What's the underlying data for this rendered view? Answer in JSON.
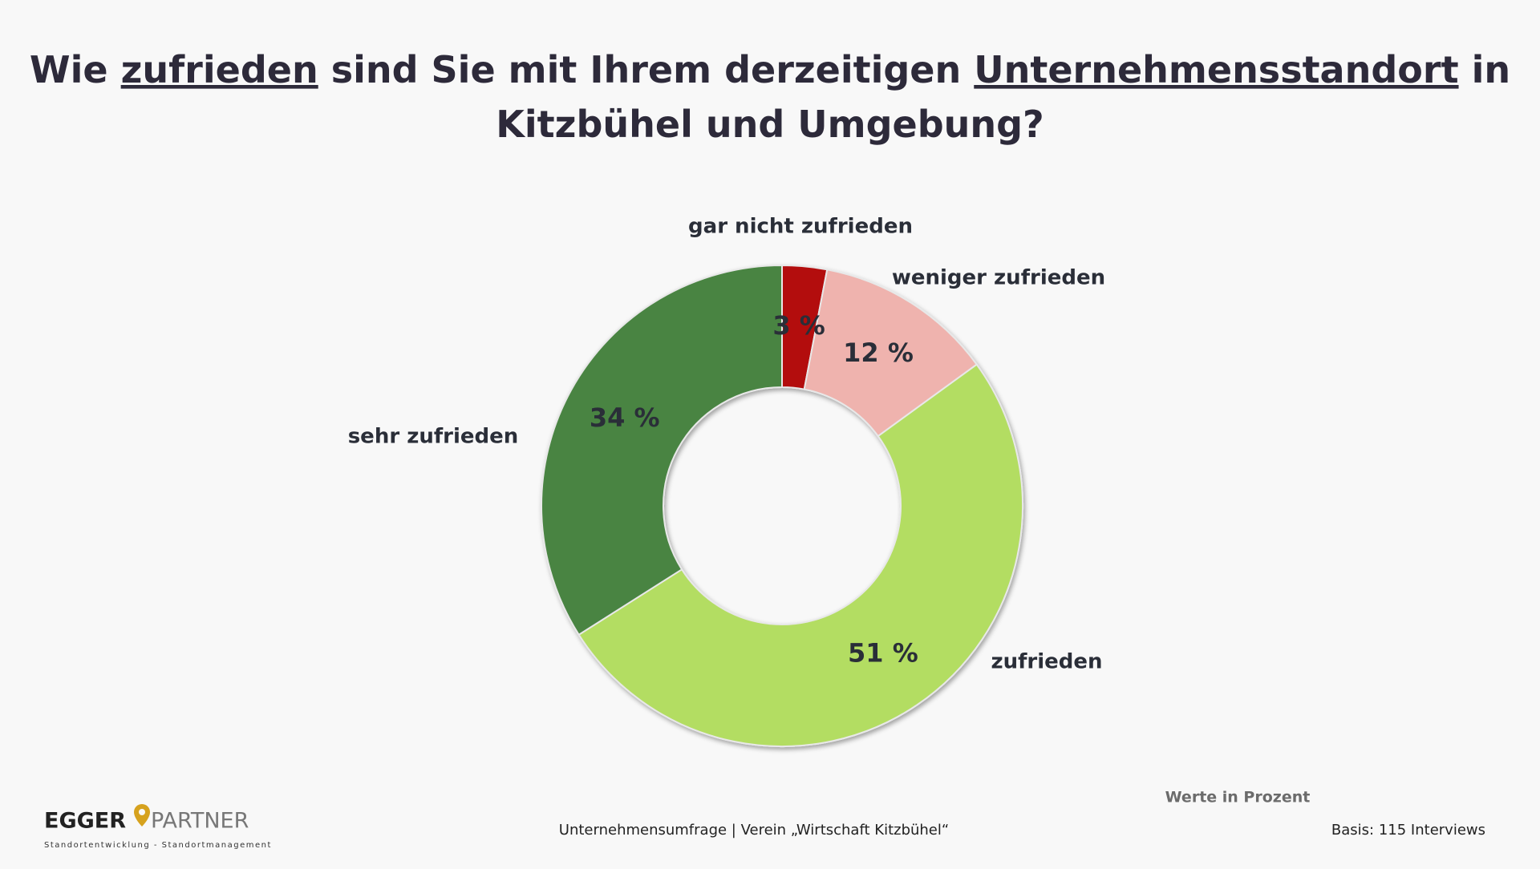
{
  "chart_data": {
    "type": "donut",
    "title": [
      {
        "text": "Wie "
      },
      {
        "text": "zufrieden",
        "underline": true
      },
      {
        "text": " sind Sie mit Ihrem derzeitigen "
      },
      {
        "text": "Unternehmensstandort",
        "underline": true
      },
      {
        "text": " in"
      },
      {
        "text": "Kitzbühel und Umgebung?",
        "newline": true
      }
    ],
    "categories": [
      "gar nicht zufrieden",
      "weniger zufrieden",
      "zufrieden",
      "sehr zufrieden"
    ],
    "values": [
      3,
      12,
      51,
      34
    ],
    "value_labels": [
      "3 %",
      "12 %",
      "51 %",
      "34 %"
    ],
    "colors": [
      "#b30f10",
      "#efb3ae",
      "#b3dd62",
      "#4a8442"
    ],
    "note": "Werte in Prozent"
  },
  "footer": {
    "source": "Unternehmensumfrage | Verein „Wirtschaft Kitzbühel“",
    "base": "Basis: 115 Interviews",
    "logo": {
      "left": "EGGER",
      "right": "PARTNER",
      "tagline": "Standortentwicklung - Standortmanagement"
    }
  }
}
